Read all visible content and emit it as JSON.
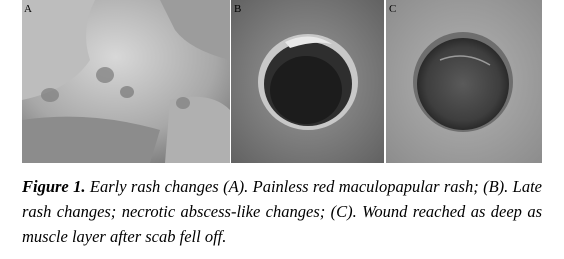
{
  "panels": [
    {
      "label": "A"
    },
    {
      "label": "B"
    },
    {
      "label": "C"
    }
  ],
  "caption": {
    "label": "Figure 1.",
    "text": "Early rash changes (A). Painless red maculopapular rash; (B). Late rash changes; necrotic abscess-like changes; (C). Wound reached as deep as muscle layer after scab fell off."
  }
}
